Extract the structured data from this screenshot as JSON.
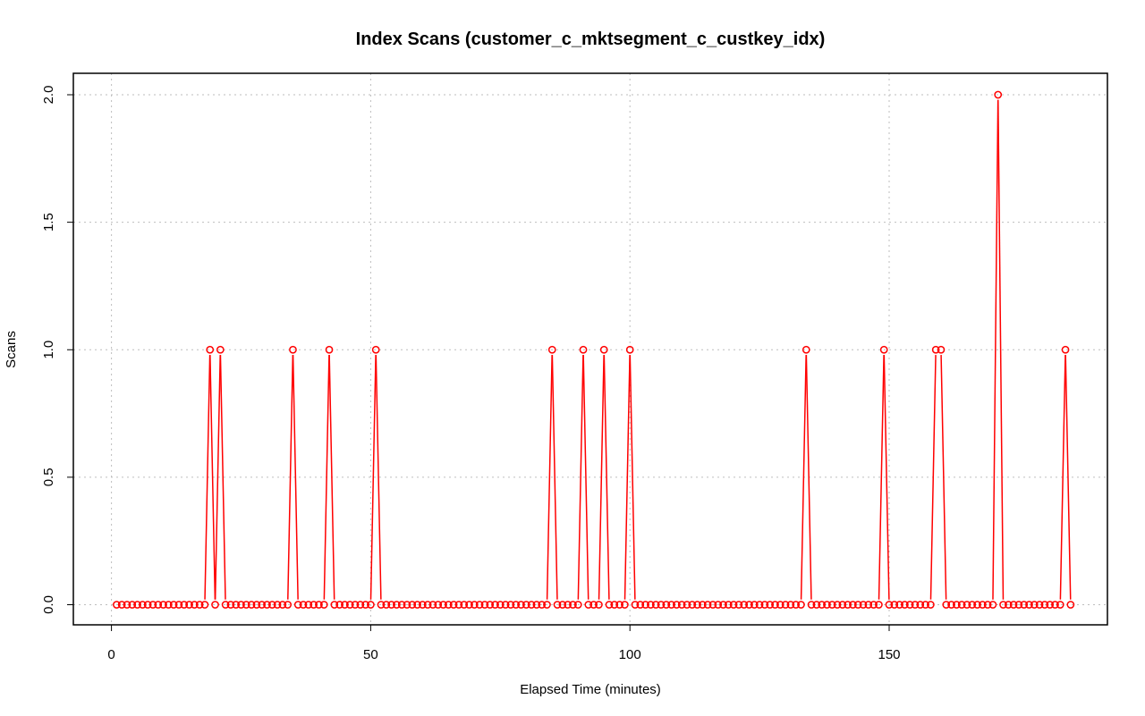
{
  "chart_data": {
    "type": "line",
    "title": "Index Scans (customer_c_mktsegment_c_custkey_idx)",
    "xlabel": "Elapsed Time (minutes)",
    "ylabel": "Scans",
    "xlim": [
      0,
      190
    ],
    "ylim": [
      0,
      2
    ],
    "x_ticks": [
      0,
      50,
      100,
      150
    ],
    "y_ticks": [
      0,
      0.5,
      1,
      1.5,
      2
    ],
    "x_tick_labels": [
      "0",
      "50",
      "100",
      "150"
    ],
    "y_tick_labels": [
      "0.0",
      "0.5",
      "1.0",
      "1.5",
      "2.0"
    ],
    "grid": true,
    "point_style": "open-circle",
    "color": "#ff0000",
    "x_start": 1,
    "x_end": 185,
    "series": [
      {
        "spikes": [
          {
            "x": 19,
            "y": 1
          },
          {
            "x": 21,
            "y": 1
          },
          {
            "x": 35,
            "y": 1
          },
          {
            "x": 42,
            "y": 1
          },
          {
            "x": 51,
            "y": 1
          },
          {
            "x": 85,
            "y": 1
          },
          {
            "x": 91,
            "y": 1
          },
          {
            "x": 95,
            "y": 1
          },
          {
            "x": 100,
            "y": 1
          },
          {
            "x": 134,
            "y": 1
          },
          {
            "x": 149,
            "y": 1
          },
          {
            "x": 159,
            "y": 1
          },
          {
            "x": 160,
            "y": 1
          },
          {
            "x": 171,
            "y": 2
          },
          {
            "x": 184,
            "y": 1
          }
        ],
        "baseline": 0
      }
    ]
  }
}
